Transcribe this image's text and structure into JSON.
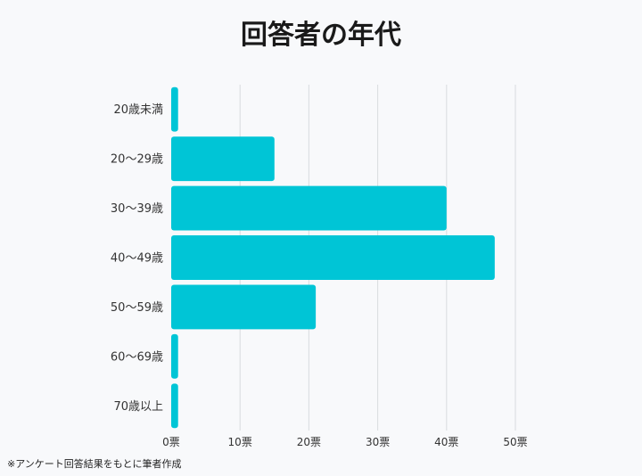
{
  "chart_data": {
    "type": "bar",
    "orientation": "horizontal",
    "title": "回答者の年代",
    "categories": [
      "20歳未満",
      "20～29歳",
      "30～39歳",
      "40～49歳",
      "50～59歳",
      "60～69歳",
      "70歳以上"
    ],
    "values": [
      1,
      15,
      40,
      47,
      21,
      1,
      1
    ],
    "xlim": [
      0,
      50
    ],
    "xticks": [
      0,
      10,
      20,
      30,
      40,
      50
    ],
    "tick_suffix": "票",
    "grid": true,
    "bar_color": "#00c5d6",
    "grid_color": "#d9dcdf"
  },
  "footnote": "※アンケート回答結果をもとに筆者作成"
}
